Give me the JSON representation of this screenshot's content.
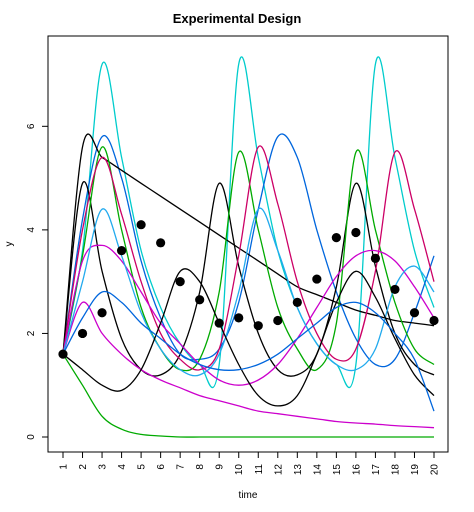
{
  "chart_data": {
    "type": "line",
    "title": "Experimental Design",
    "xlabel": "time",
    "ylabel": "y",
    "xlim": [
      1,
      20
    ],
    "ylim": [
      0,
      7.3
    ],
    "x_ticks": [
      1,
      2,
      3,
      4,
      5,
      6,
      7,
      8,
      9,
      10,
      11,
      12,
      13,
      14,
      15,
      16,
      17,
      18,
      19,
      20
    ],
    "y_ticks": [
      0,
      2,
      4,
      6
    ],
    "grid": false,
    "legend": "none",
    "series": [
      {
        "color": "#00cccc",
        "values": [
          1.6,
          3.6,
          7.2,
          5.4,
          3.6,
          2.5,
          1.8,
          1.4,
          1.4,
          7.2,
          5.4,
          3.6,
          2.5,
          1.8,
          1.4,
          1.4,
          7.2,
          5.4,
          3.6,
          2.5
        ]
      },
      {
        "color": "#0066dd",
        "values": [
          1.6,
          4.2,
          5.8,
          5.0,
          3.4,
          2.3,
          1.6,
          1.5,
          1.7,
          2.6,
          4.4,
          5.8,
          5.4,
          4.0,
          2.8,
          1.9,
          1.4,
          1.5,
          2.4,
          3.5
        ]
      },
      {
        "color": "#000000",
        "values": [
          1.6,
          5.6,
          5.4,
          5.15,
          4.9,
          4.65,
          4.4,
          4.15,
          3.9,
          3.65,
          3.4,
          3.15,
          2.9,
          2.75,
          2.6,
          2.45,
          2.35,
          2.25,
          2.2,
          2.15
        ]
      },
      {
        "color": "#000000",
        "values": [
          1.6,
          4.9,
          3.2,
          1.9,
          1.3,
          1.2,
          1.6,
          2.8,
          4.9,
          3.3,
          2.0,
          1.3,
          1.2,
          1.6,
          2.9,
          4.9,
          3.3,
          2.0,
          1.4,
          1.2
        ]
      },
      {
        "color": "#00aa00",
        "values": [
          1.6,
          1.0,
          0.4,
          0.15,
          0.05,
          0.02,
          0.0,
          0.0,
          0.0,
          0.0,
          0.0,
          0.0,
          0.0,
          0.0,
          0.0,
          0.0,
          0.0,
          0.0,
          0.0,
          0.0
        ]
      },
      {
        "color": "#00aa00",
        "values": [
          1.6,
          3.5,
          5.6,
          4.0,
          2.5,
          1.7,
          1.3,
          1.5,
          2.8,
          5.5,
          4.0,
          2.5,
          1.7,
          1.3,
          2.2,
          5.5,
          4.0,
          2.6,
          1.7,
          1.4
        ]
      },
      {
        "color": "#cc0066",
        "values": [
          1.6,
          4.0,
          5.4,
          4.3,
          3.0,
          2.0,
          1.5,
          1.3,
          1.7,
          3.5,
          5.6,
          4.5,
          3.0,
          2.0,
          1.5,
          1.7,
          3.2,
          5.5,
          4.4,
          3.0
        ]
      },
      {
        "color": "#cc00cc",
        "values": [
          1.6,
          3.4,
          3.7,
          3.4,
          2.8,
          2.2,
          1.8,
          1.4,
          1.1,
          1.0,
          1.1,
          1.4,
          1.9,
          2.5,
          3.1,
          3.5,
          3.6,
          3.4,
          2.9,
          2.3
        ]
      },
      {
        "color": "#cc00cc",
        "values": [
          1.6,
          2.6,
          2.0,
          1.6,
          1.3,
          1.1,
          0.95,
          0.8,
          0.7,
          0.6,
          0.5,
          0.45,
          0.4,
          0.35,
          0.3,
          0.27,
          0.25,
          0.22,
          0.2,
          0.18
        ]
      },
      {
        "color": "#22aaee",
        "values": [
          1.6,
          3.0,
          4.4,
          3.5,
          2.4,
          1.7,
          1.3,
          1.2,
          1.6,
          2.8,
          4.4,
          3.6,
          2.5,
          1.8,
          1.4,
          1.3,
          1.7,
          2.9,
          3.3,
          2.8
        ]
      },
      {
        "color": "#000000",
        "values": [
          1.6,
          1.3,
          1.0,
          0.9,
          1.3,
          2.2,
          3.2,
          3.0,
          2.2,
          1.4,
          0.8,
          0.6,
          0.8,
          1.6,
          2.6,
          3.2,
          2.7,
          1.9,
          1.2,
          0.8
        ]
      },
      {
        "color": "#0066dd",
        "values": [
          1.6,
          2.3,
          2.8,
          2.6,
          2.2,
          1.9,
          1.6,
          1.4,
          1.3,
          1.3,
          1.4,
          1.6,
          1.9,
          2.2,
          2.5,
          2.6,
          2.4,
          2.0,
          1.5,
          0.5
        ]
      }
    ],
    "points": {
      "x": [
        1,
        2,
        3,
        4,
        5,
        6,
        7,
        8,
        9,
        10,
        11,
        12,
        13,
        14,
        15,
        16,
        17,
        18,
        19,
        20
      ],
      "y": [
        1.6,
        2.0,
        2.4,
        3.6,
        4.1,
        3.75,
        3.0,
        2.65,
        2.2,
        2.3,
        2.15,
        2.25,
        2.6,
        3.05,
        3.85,
        3.95,
        3.45,
        2.85,
        2.4,
        2.25
      ]
    }
  }
}
